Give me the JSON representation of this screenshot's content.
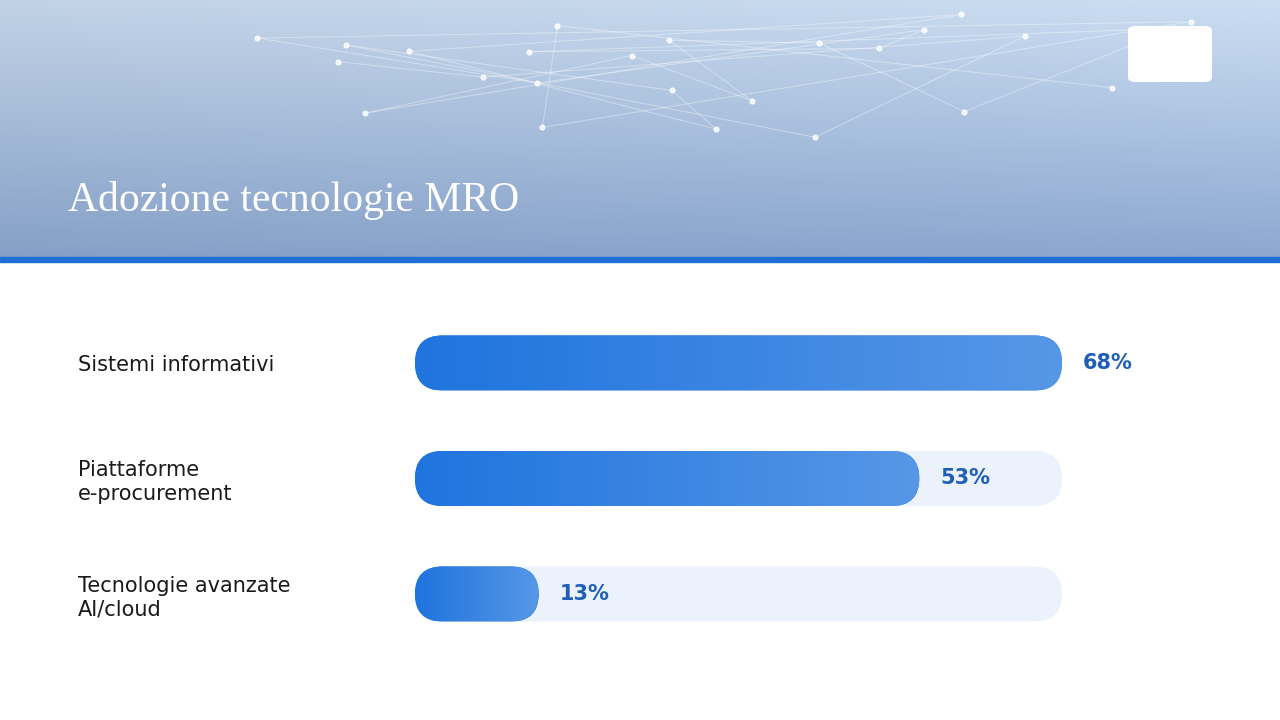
{
  "chart_data": {
    "type": "bar",
    "orientation": "horizontal",
    "title": "Adozione tecnologie MRO",
    "categories": [
      "Sistemi informativi",
      "Piattaforme\ne-procurement",
      "Tecnologie avanzate\nAI/cloud"
    ],
    "values": [
      68,
      53,
      13
    ],
    "value_labels": [
      "68%",
      "53%",
      "13%"
    ],
    "data_labels": true,
    "color": "#1f74de",
    "xlim": [
      0,
      68
    ],
    "tick_labels": "y",
    "grid": false
  }
}
